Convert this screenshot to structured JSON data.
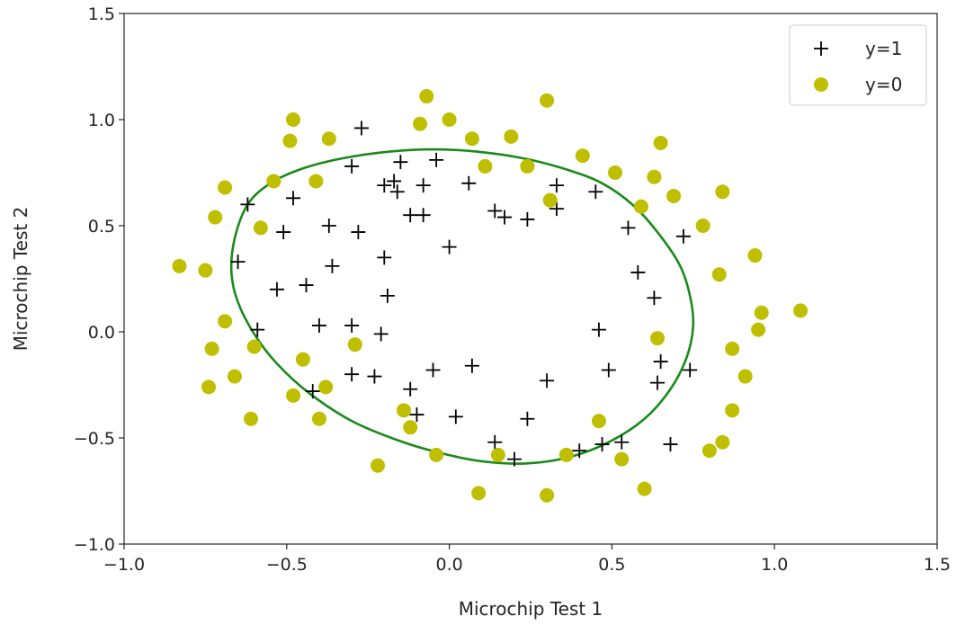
{
  "chart_data": {
    "type": "scatter",
    "xlabel": "Microchip Test 1",
    "ylabel": "Microchip Test 2",
    "xlim": [
      -1.0,
      1.5
    ],
    "ylim": [
      -1.0,
      1.5
    ],
    "xticks": [
      "-1.0",
      "-0.5",
      "0.0",
      "0.5",
      "1.0",
      "1.5"
    ],
    "yticks": [
      "-1.0",
      "-0.5",
      "0.0",
      "0.5",
      "1.0",
      "1.5"
    ],
    "grid": false,
    "legend_position": "top-right",
    "series": [
      {
        "name": "y=1",
        "marker": "plus",
        "color": "#000000",
        "points": [
          [
            -0.62,
            0.6
          ],
          [
            -0.65,
            0.33
          ],
          [
            -0.59,
            0.01
          ],
          [
            -0.51,
            0.47
          ],
          [
            -0.53,
            0.2
          ],
          [
            -0.48,
            0.63
          ],
          [
            -0.44,
            0.22
          ],
          [
            -0.42,
            -0.28
          ],
          [
            -0.4,
            0.03
          ],
          [
            -0.37,
            0.5
          ],
          [
            -0.36,
            0.31
          ],
          [
            -0.3,
            0.78
          ],
          [
            -0.3,
            0.03
          ],
          [
            -0.3,
            -0.2
          ],
          [
            -0.27,
            0.96
          ],
          [
            -0.28,
            0.47
          ],
          [
            -0.23,
            -0.21
          ],
          [
            -0.21,
            -0.01
          ],
          [
            -0.2,
            0.69
          ],
          [
            -0.2,
            0.35
          ],
          [
            -0.19,
            0.17
          ],
          [
            -0.17,
            0.71
          ],
          [
            -0.16,
            0.66
          ],
          [
            -0.15,
            0.8
          ],
          [
            -0.12,
            0.55
          ],
          [
            -0.12,
            -0.27
          ],
          [
            -0.1,
            -0.39
          ],
          [
            -0.08,
            0.69
          ],
          [
            -0.08,
            0.55
          ],
          [
            -0.05,
            -0.18
          ],
          [
            -0.04,
            0.81
          ],
          [
            0.0,
            0.4
          ],
          [
            0.02,
            -0.4
          ],
          [
            0.06,
            0.7
          ],
          [
            0.07,
            -0.16
          ],
          [
            0.14,
            0.57
          ],
          [
            0.14,
            -0.52
          ],
          [
            0.17,
            0.54
          ],
          [
            0.2,
            -0.6
          ],
          [
            0.24,
            0.53
          ],
          [
            0.24,
            -0.41
          ],
          [
            0.3,
            -0.23
          ],
          [
            0.33,
            0.69
          ],
          [
            0.33,
            0.58
          ],
          [
            0.4,
            -0.56
          ],
          [
            0.45,
            0.66
          ],
          [
            0.46,
            0.01
          ],
          [
            0.47,
            -0.53
          ],
          [
            0.49,
            -0.18
          ],
          [
            0.53,
            -0.52
          ],
          [
            0.55,
            0.49
          ],
          [
            0.58,
            0.28
          ],
          [
            0.63,
            0.16
          ],
          [
            0.64,
            -0.24
          ],
          [
            0.65,
            -0.14
          ],
          [
            0.68,
            -0.53
          ],
          [
            0.72,
            0.45
          ],
          [
            0.74,
            -0.18
          ]
        ]
      },
      {
        "name": "y=0",
        "marker": "circle",
        "color": "#bfbf00",
        "points": [
          [
            -0.83,
            0.31
          ],
          [
            -0.75,
            0.29
          ],
          [
            -0.74,
            -0.26
          ],
          [
            -0.73,
            -0.08
          ],
          [
            -0.72,
            0.54
          ],
          [
            -0.69,
            0.68
          ],
          [
            -0.69,
            0.05
          ],
          [
            -0.66,
            -0.21
          ],
          [
            -0.61,
            -0.41
          ],
          [
            -0.6,
            -0.07
          ],
          [
            -0.58,
            0.49
          ],
          [
            -0.54,
            0.71
          ],
          [
            -0.49,
            0.9
          ],
          [
            -0.48,
            1.0
          ],
          [
            -0.48,
            -0.3
          ],
          [
            -0.45,
            -0.13
          ],
          [
            -0.41,
            0.71
          ],
          [
            -0.4,
            -0.41
          ],
          [
            -0.38,
            -0.26
          ],
          [
            -0.37,
            0.91
          ],
          [
            -0.29,
            -0.06
          ],
          [
            -0.22,
            -0.63
          ],
          [
            -0.14,
            -0.37
          ],
          [
            -0.12,
            -0.45
          ],
          [
            -0.09,
            0.98
          ],
          [
            -0.07,
            1.11
          ],
          [
            -0.04,
            -0.58
          ],
          [
            0.0,
            1.0
          ],
          [
            0.07,
            0.91
          ],
          [
            0.09,
            -0.76
          ],
          [
            0.11,
            0.78
          ],
          [
            0.15,
            -0.58
          ],
          [
            0.19,
            0.92
          ],
          [
            0.24,
            0.78
          ],
          [
            0.3,
            1.09
          ],
          [
            0.3,
            -0.77
          ],
          [
            0.31,
            0.62
          ],
          [
            0.36,
            -0.58
          ],
          [
            0.41,
            0.83
          ],
          [
            0.46,
            -0.42
          ],
          [
            0.51,
            0.75
          ],
          [
            0.53,
            -0.6
          ],
          [
            0.59,
            0.59
          ],
          [
            0.6,
            -0.74
          ],
          [
            0.63,
            0.73
          ],
          [
            0.64,
            -0.03
          ],
          [
            0.65,
            0.89
          ],
          [
            0.69,
            0.64
          ],
          [
            0.78,
            0.5
          ],
          [
            0.8,
            -0.56
          ],
          [
            0.83,
            0.27
          ],
          [
            0.84,
            0.66
          ],
          [
            0.84,
            -0.52
          ],
          [
            0.87,
            -0.37
          ],
          [
            0.87,
            -0.08
          ],
          [
            0.91,
            -0.21
          ],
          [
            0.94,
            0.36
          ],
          [
            0.95,
            0.01
          ],
          [
            0.96,
            0.09
          ],
          [
            1.08,
            0.1
          ]
        ]
      }
    ],
    "decision_boundary": {
      "color": "#1a8a1a",
      "shape": "closed-curve",
      "points": [
        [
          -0.62,
          0.6
        ],
        [
          -0.55,
          0.7
        ],
        [
          -0.45,
          0.77
        ],
        [
          -0.32,
          0.82
        ],
        [
          -0.18,
          0.85
        ],
        [
          -0.05,
          0.86
        ],
        [
          0.08,
          0.85
        ],
        [
          0.22,
          0.82
        ],
        [
          0.35,
          0.77
        ],
        [
          0.47,
          0.7
        ],
        [
          0.57,
          0.59
        ],
        [
          0.65,
          0.45
        ],
        [
          0.71,
          0.31
        ],
        [
          0.74,
          0.17
        ],
        [
          0.75,
          0.03
        ],
        [
          0.73,
          -0.12
        ],
        [
          0.68,
          -0.27
        ],
        [
          0.6,
          -0.41
        ],
        [
          0.49,
          -0.52
        ],
        [
          0.37,
          -0.59
        ],
        [
          0.24,
          -0.62
        ],
        [
          0.1,
          -0.61
        ],
        [
          -0.03,
          -0.57
        ],
        [
          -0.16,
          -0.51
        ],
        [
          -0.3,
          -0.42
        ],
        [
          -0.43,
          -0.29
        ],
        [
          -0.53,
          -0.15
        ],
        [
          -0.6,
          -0.01
        ],
        [
          -0.65,
          0.14
        ],
        [
          -0.67,
          0.28
        ],
        [
          -0.66,
          0.44
        ],
        [
          -0.62,
          0.6
        ]
      ]
    }
  }
}
